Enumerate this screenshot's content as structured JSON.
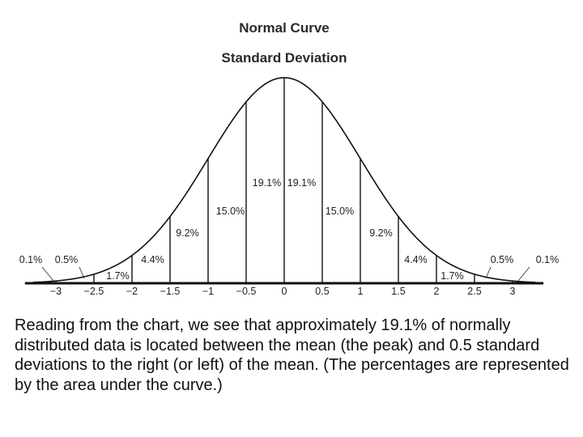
{
  "chart_data": {
    "type": "area",
    "title": "Normal Curve",
    "subtitle": "Standard Deviation",
    "xlim": [
      -3.3,
      3.3
    ],
    "x_ticks": [
      -3,
      -2.5,
      -2,
      -1.5,
      -1,
      -0.5,
      0,
      0.5,
      1,
      1.5,
      2,
      2.5,
      3
    ],
    "x_tick_labels": [
      "−3",
      "−2.5",
      "−2",
      "−1.5",
      "−1",
      "−0.5",
      "0",
      "0.5",
      "1",
      "1.5",
      "2",
      "2.5",
      "3"
    ],
    "segments": [
      {
        "from": -3.3,
        "to": -3.0,
        "label": "0.1%"
      },
      {
        "from": -3.0,
        "to": -2.5,
        "label": "0.5%"
      },
      {
        "from": -2.5,
        "to": -2.0,
        "label": "1.7%"
      },
      {
        "from": -2.0,
        "to": -1.5,
        "label": "4.4%"
      },
      {
        "from": -1.5,
        "to": -1.0,
        "label": "9.2%"
      },
      {
        "from": -1.0,
        "to": -0.5,
        "label": "15.0%"
      },
      {
        "from": -0.5,
        "to": 0.0,
        "label": "19.1%"
      },
      {
        "from": 0.0,
        "to": 0.5,
        "label": "19.1%"
      },
      {
        "from": 0.5,
        "to": 1.0,
        "label": "15.0%"
      },
      {
        "from": 1.0,
        "to": 1.5,
        "label": "9.2%"
      },
      {
        "from": 1.5,
        "to": 2.0,
        "label": "4.4%"
      },
      {
        "from": 2.0,
        "to": 2.5,
        "label": "1.7%"
      },
      {
        "from": 2.5,
        "to": 3.0,
        "label": "0.5%"
      },
      {
        "from": 3.0,
        "to": 3.3,
        "label": "0.1%"
      }
    ]
  },
  "caption": "Reading from the chart, we see that approximately 19.1% of normally distributed data is located between the mean (the peak) and 0.5 standard deviations to the right (or left) of the mean. (The percentages are represented by the area under the curve.)"
}
